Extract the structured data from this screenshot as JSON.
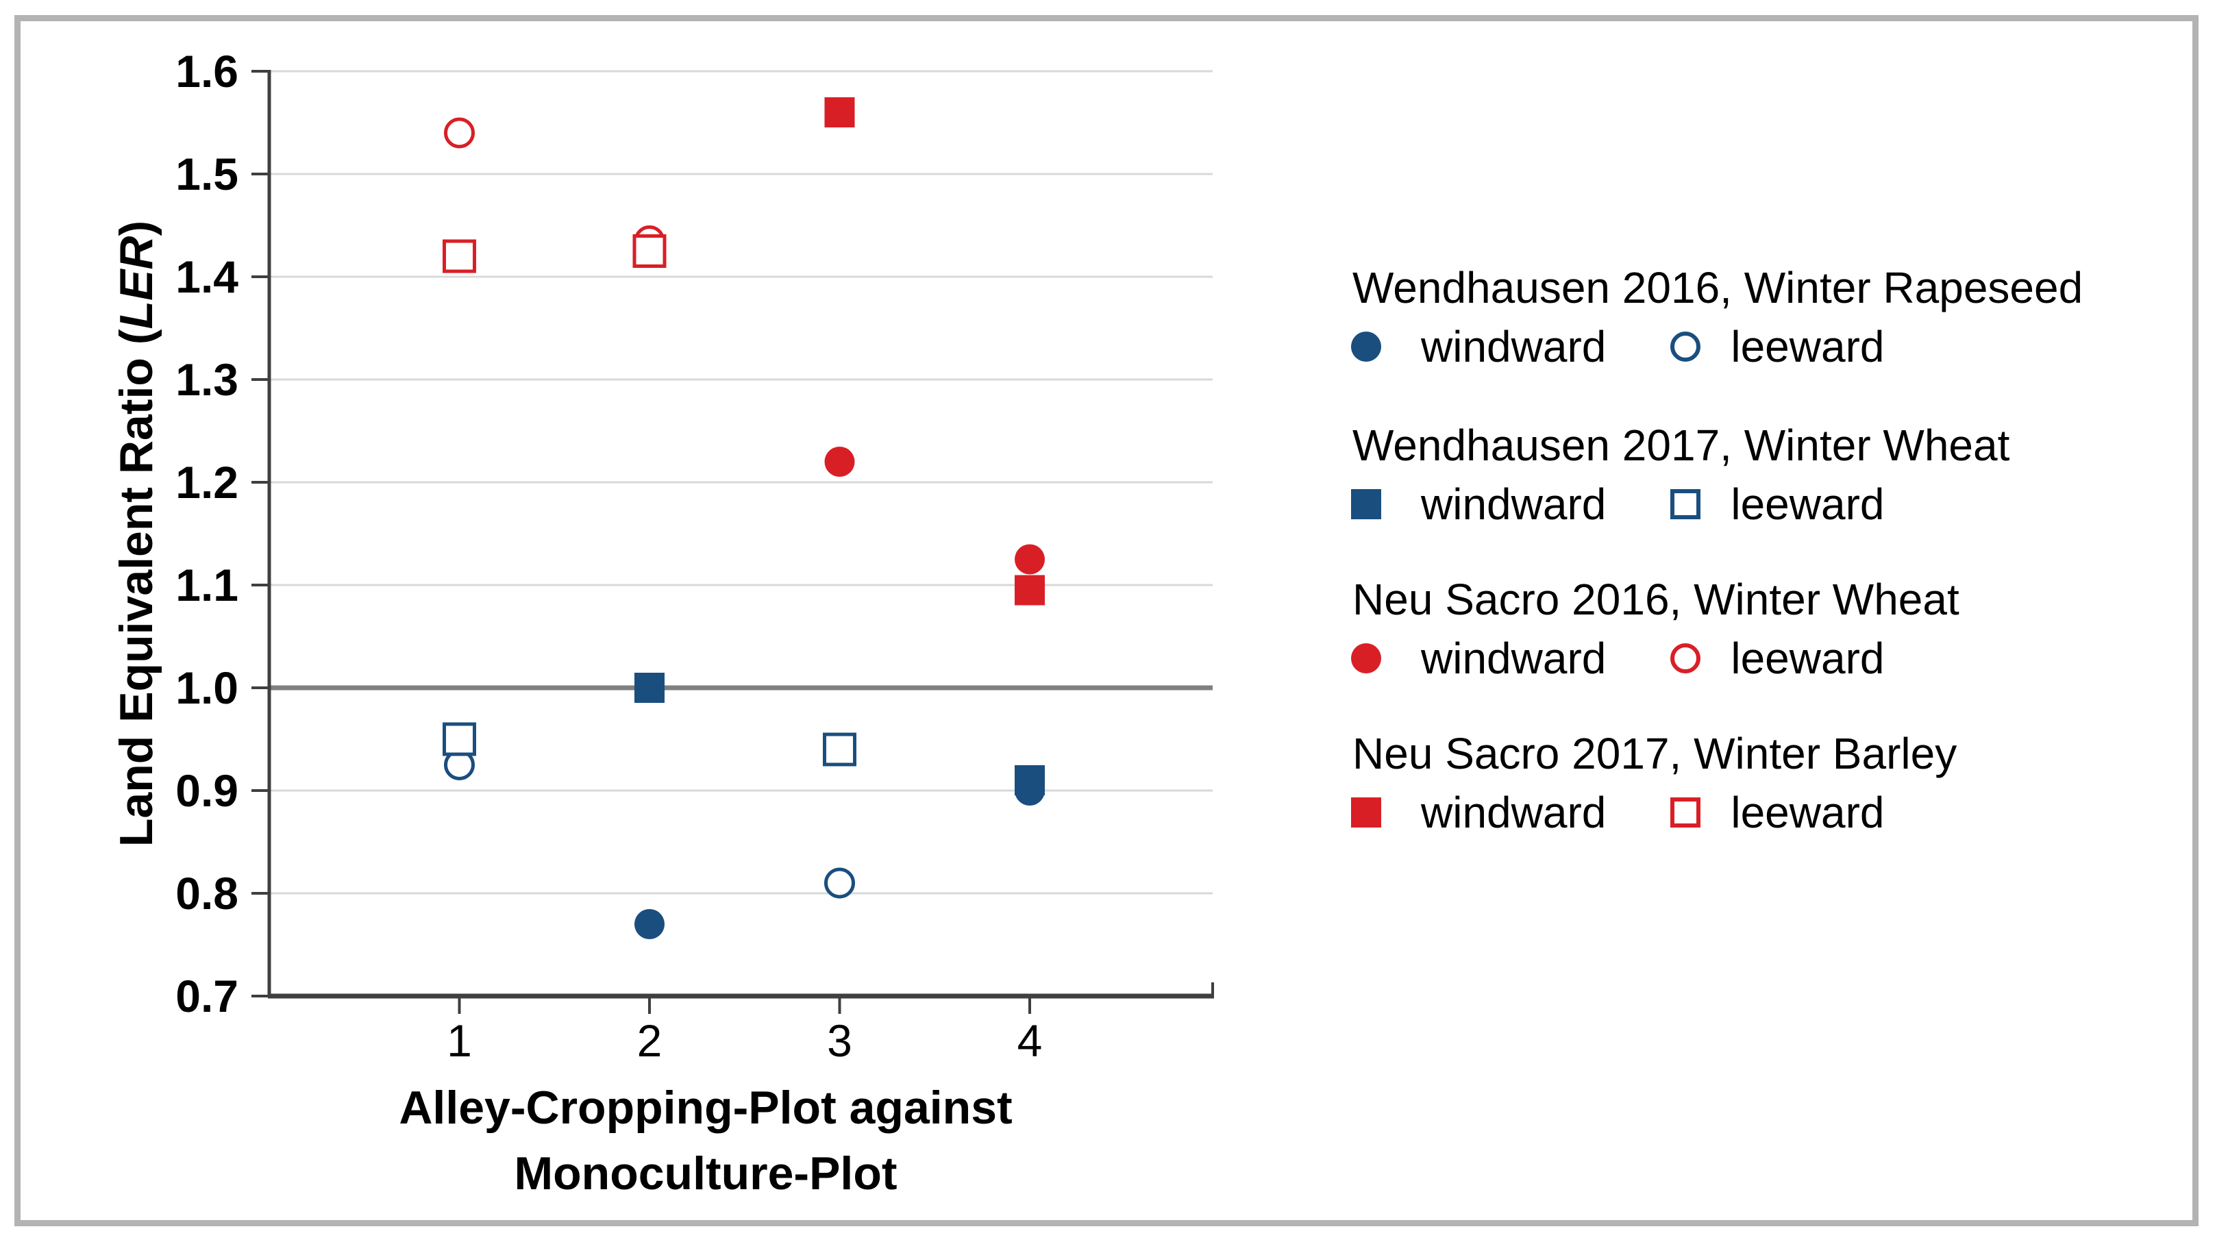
{
  "figure": {
    "background": "#ffffff",
    "border_color": "#b3b3b3"
  },
  "chart_data": {
    "type": "scatter",
    "xlabel_line1": "Alley-Cropping-Plot against",
    "xlabel_line2": "Monoculture-Plot",
    "ylabel_prefix": "Land Equivalent Ratio (",
    "ylabel_italic": "LER",
    "ylabel_suffix": ")",
    "x_ticks": [
      "1",
      "2",
      "3",
      "4"
    ],
    "y_ticks": [
      "1.6",
      "1.5",
      "1.4",
      "1.3",
      "1.2",
      "1.1",
      "1.0",
      "0.9",
      "0.8",
      "0.7"
    ],
    "xlim": [
      0,
      4.96
    ],
    "ylim": [
      0.7,
      1.6
    ],
    "grid": true,
    "reference_line": 1.0,
    "legend_position": "right",
    "colors": {
      "blue": "#1a4e7e",
      "red": "#d91f26",
      "grid": "#d9d9d9",
      "axis": "#3f3f3f",
      "reference": "#808080",
      "text": "#000000"
    },
    "marker_semantics": {
      "filled": "windward",
      "open": "leeward"
    },
    "series": [
      {
        "name": "Wendhausen 2016, Winter Rapeseed",
        "marker": "circle",
        "color_key": "blue",
        "windward_label": "windward",
        "leeward_label": "leeward",
        "points": [
          {
            "x": 1,
            "y": 0.925,
            "exposure": "leeward"
          },
          {
            "x": 2,
            "y": 0.77,
            "exposure": "windward"
          },
          {
            "x": 3,
            "y": 0.81,
            "exposure": "leeward"
          },
          {
            "x": 4,
            "y": 0.9,
            "exposure": "windward"
          }
        ]
      },
      {
        "name": "Wendhausen 2017, Winter Wheat",
        "marker": "square",
        "color_key": "blue",
        "windward_label": "windward",
        "leeward_label": "leeward",
        "points": [
          {
            "x": 1,
            "y": 0.95,
            "exposure": "leeward"
          },
          {
            "x": 2,
            "y": 1.0,
            "exposure": "windward"
          },
          {
            "x": 3,
            "y": 0.94,
            "exposure": "leeward"
          },
          {
            "x": 4,
            "y": 0.91,
            "exposure": "windward"
          }
        ]
      },
      {
        "name": "Neu Sacro 2016, Winter Wheat",
        "marker": "circle",
        "color_key": "red",
        "windward_label": "windward",
        "leeward_label": "leeward",
        "points": [
          {
            "x": 1,
            "y": 1.54,
            "exposure": "leeward"
          },
          {
            "x": 2,
            "y": 1.435,
            "exposure": "leeward"
          },
          {
            "x": 3,
            "y": 1.22,
            "exposure": "windward"
          },
          {
            "x": 4,
            "y": 1.125,
            "exposure": "windward"
          }
        ]
      },
      {
        "name": "Neu Sacro 2017, Winter Barley",
        "marker": "square",
        "color_key": "red",
        "windward_label": "windward",
        "leeward_label": "leeward",
        "points": [
          {
            "x": 1,
            "y": 1.42,
            "exposure": "leeward"
          },
          {
            "x": 2,
            "y": 1.425,
            "exposure": "leeward"
          },
          {
            "x": 3,
            "y": 1.56,
            "exposure": "windward"
          },
          {
            "x": 4,
            "y": 1.095,
            "exposure": "windward"
          }
        ]
      }
    ]
  }
}
